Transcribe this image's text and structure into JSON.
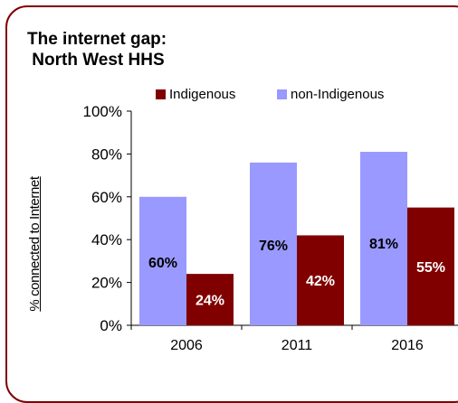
{
  "chart_data": {
    "type": "bar",
    "title_lines": [
      "The internet gap:",
      " North West HHS"
    ],
    "ylabel": "% connected to Internet",
    "xlabel": "",
    "categories": [
      "2006",
      "2011",
      "2016"
    ],
    "ylim": [
      0,
      100
    ],
    "yticks": [
      "0%",
      "20%",
      "40%",
      "60%",
      "80%",
      "100%"
    ],
    "grid": false,
    "legend_position": "top",
    "series": [
      {
        "name": "non-Indigenous",
        "values": [
          60,
          76,
          81
        ],
        "labels": [
          "60%",
          "76%",
          "81%"
        ],
        "color": "#9999ff",
        "label_color": "#000000"
      },
      {
        "name": "Indigenous",
        "values": [
          24,
          42,
          55
        ],
        "labels": [
          "24%",
          "42%",
          "55%"
        ],
        "color": "#800000",
        "label_color": "#ffffff"
      }
    ],
    "legend_order": [
      "Indigenous",
      "non-Indigenous"
    ]
  },
  "colors": {
    "frame": "#7f0000",
    "indigenous": "#800000",
    "non_indigenous": "#9999ff"
  }
}
